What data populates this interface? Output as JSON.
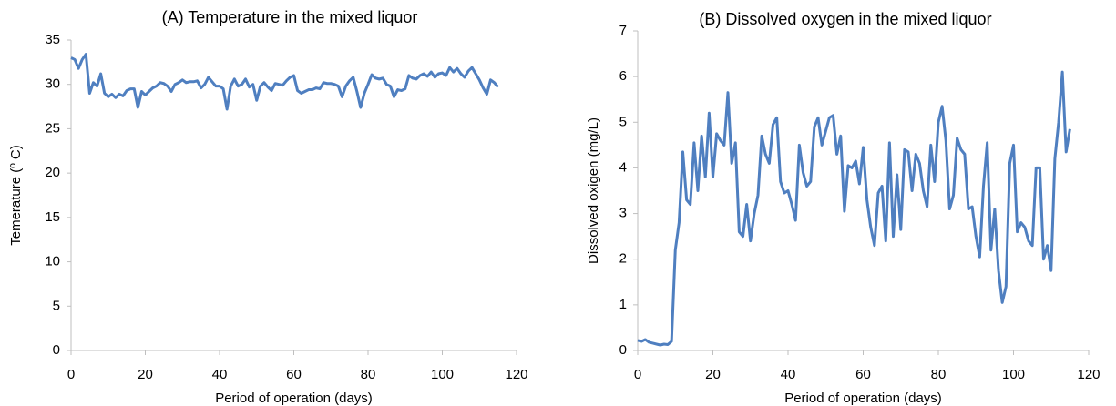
{
  "chart_data": [
    {
      "type": "line",
      "title": "(A) Temperature in the mixed liquor",
      "x_label": "Period of operation (days)",
      "y_label": "Temerature (º C)",
      "xlim": [
        0,
        120
      ],
      "xticks": [
        0,
        20,
        40,
        60,
        80,
        100,
        120
      ],
      "ylim": [
        0,
        35
      ],
      "yticks": [
        0,
        5,
        10,
        15,
        20,
        25,
        30,
        35
      ],
      "grid": false,
      "x": [
        0,
        1,
        2,
        3,
        4,
        5,
        6,
        7,
        8,
        9,
        10,
        11,
        12,
        13,
        14,
        15,
        16,
        17,
        18,
        19,
        20,
        21,
        22,
        23,
        24,
        25,
        26,
        27,
        28,
        29,
        30,
        31,
        32,
        33,
        34,
        35,
        36,
        37,
        38,
        39,
        40,
        41,
        42,
        43,
        44,
        45,
        46,
        47,
        48,
        49,
        50,
        51,
        52,
        53,
        54,
        55,
        56,
        57,
        58,
        59,
        60,
        61,
        62,
        63,
        64,
        65,
        66,
        67,
        68,
        69,
        70,
        71,
        72,
        73,
        74,
        75,
        76,
        77,
        78,
        79,
        80,
        81,
        82,
        83,
        84,
        85,
        86,
        87,
        88,
        89,
        90,
        91,
        92,
        93,
        94,
        95,
        96,
        97,
        98,
        99,
        100,
        101,
        102,
        103,
        104,
        105,
        106,
        107,
        108,
        109,
        110,
        111,
        112,
        113,
        114,
        115
      ],
      "series": [
        {
          "name": "Temperature",
          "color": "#4f7fc0",
          "values": [
            33,
            32.8,
            31.8,
            32.8,
            33.4,
            29,
            30.2,
            29.8,
            31.2,
            29,
            28.6,
            28.9,
            28.5,
            28.9,
            28.7,
            29.3,
            29.5,
            29.5,
            27.4,
            29.2,
            28.8,
            29.2,
            29.6,
            29.8,
            30.2,
            30.1,
            29.8,
            29.2,
            30,
            30.2,
            30.5,
            30.2,
            30.3,
            30.3,
            30.4,
            29.6,
            30,
            30.8,
            30.3,
            29.8,
            29.8,
            29.5,
            27.2,
            29.8,
            30.6,
            29.8,
            30,
            30.6,
            29.7,
            30,
            28.2,
            29.8,
            30.2,
            29.7,
            29.3,
            30.1,
            30,
            29.9,
            30.4,
            30.8,
            31,
            29.3,
            29,
            29.2,
            29.4,
            29.4,
            29.6,
            29.5,
            30.2,
            30.1,
            30.1,
            30,
            29.8,
            28.6,
            29.8,
            30.4,
            30.8,
            29.2,
            27.4,
            29,
            30,
            31.1,
            30.7,
            30.6,
            30.7,
            30,
            29.8,
            28.6,
            29.4,
            29.3,
            29.5,
            31,
            30.7,
            30.6,
            31,
            31.2,
            30.9,
            31.4,
            30.8,
            31.2,
            31.3,
            31,
            31.9,
            31.4,
            31.8,
            31.2,
            30.8,
            31.5,
            31.9,
            31.2,
            30.5,
            29.6,
            28.9,
            30.5,
            30.2,
            29.7
          ]
        }
      ]
    },
    {
      "type": "line",
      "title": "(B) Dissolved oxygen in the mixed liquor",
      "x_label": "Period of operation (days)",
      "y_label": "Dissolved oxigen (mg/L)",
      "xlim": [
        0,
        120
      ],
      "xticks": [
        0,
        20,
        40,
        60,
        80,
        100,
        120
      ],
      "ylim": [
        0,
        7
      ],
      "yticks": [
        0,
        1,
        2,
        3,
        4,
        5,
        6,
        7
      ],
      "grid": false,
      "x": [
        0,
        1,
        2,
        3,
        4,
        5,
        6,
        7,
        8,
        9,
        10,
        11,
        12,
        13,
        14,
        15,
        16,
        17,
        18,
        19,
        20,
        21,
        22,
        23,
        24,
        25,
        26,
        27,
        28,
        29,
        30,
        31,
        32,
        33,
        34,
        35,
        36,
        37,
        38,
        39,
        40,
        41,
        42,
        43,
        44,
        45,
        46,
        47,
        48,
        49,
        50,
        51,
        52,
        53,
        54,
        55,
        56,
        57,
        58,
        59,
        60,
        61,
        62,
        63,
        64,
        65,
        66,
        67,
        68,
        69,
        70,
        71,
        72,
        73,
        74,
        75,
        76,
        77,
        78,
        79,
        80,
        81,
        82,
        83,
        84,
        85,
        86,
        87,
        88,
        89,
        90,
        91,
        92,
        93,
        94,
        95,
        96,
        97,
        98,
        99,
        100,
        101,
        102,
        103,
        104,
        105,
        106,
        107,
        108,
        109,
        110,
        111,
        112,
        113,
        114,
        115
      ],
      "series": [
        {
          "name": "Dissolved oxygen",
          "color": "#4f7fc0",
          "values": [
            0.22,
            0.2,
            0.24,
            0.18,
            0.16,
            0.14,
            0.12,
            0.14,
            0.13,
            0.2,
            2.2,
            2.8,
            4.35,
            3.3,
            3.2,
            4.55,
            3.5,
            4.7,
            3.8,
            5.2,
            3.8,
            4.75,
            4.6,
            4.5,
            5.65,
            4.1,
            4.55,
            2.6,
            2.5,
            3.2,
            2.4,
            3,
            3.4,
            4.7,
            4.3,
            4.1,
            4.95,
            5.1,
            3.7,
            3.45,
            3.5,
            3.2,
            2.85,
            4.5,
            3.9,
            3.6,
            3.7,
            4.9,
            5.1,
            4.5,
            4.8,
            5.1,
            5.15,
            4.3,
            4.7,
            3.05,
            4.05,
            4,
            4.15,
            3.65,
            4.45,
            3.3,
            2.7,
            2.3,
            3.45,
            3.6,
            2.4,
            4.55,
            2.5,
            3.85,
            2.65,
            4.4,
            4.35,
            3.5,
            4.3,
            4.1,
            3.5,
            3.15,
            4.5,
            3.7,
            5,
            5.35,
            4.6,
            3.1,
            3.4,
            4.65,
            4.4,
            4.3,
            3.1,
            3.15,
            2.5,
            2.05,
            3.6,
            4.55,
            2.2,
            3.1,
            1.75,
            1.05,
            1.4,
            4.1,
            4.5,
            2.6,
            2.8,
            2.7,
            2.4,
            2.3,
            4,
            4,
            2,
            2.3,
            1.75,
            4.2,
            5,
            6.1,
            4.35,
            4.85
          ]
        }
      ]
    }
  ]
}
